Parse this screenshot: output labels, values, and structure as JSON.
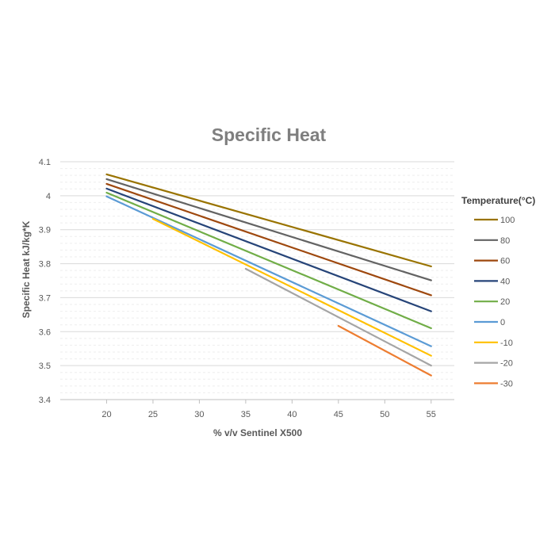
{
  "chart_data": {
    "type": "line",
    "title": "Specific Heat",
    "xlabel": "% v/v Sentinel X500",
    "ylabel": "Specific Heat kJ/kg*K",
    "x_ticks": [
      "20",
      "25",
      "30",
      "35",
      "40",
      "45",
      "50",
      "55"
    ],
    "y_ticks": [
      "3.4",
      "3.5",
      "3.6",
      "3.7",
      "3.8",
      "3.9",
      "4",
      "4.1"
    ],
    "xlim": [
      15,
      57.5
    ],
    "ylim": [
      3.4,
      4.1
    ],
    "grid": true,
    "legend_title": "Temperature(°C)",
    "legend_position": "right",
    "series": [
      {
        "name": "100",
        "color": "#997300",
        "x": [
          20,
          55
        ],
        "y": [
          4.063,
          3.792
        ]
      },
      {
        "name": "80",
        "color": "#636363",
        "x": [
          20,
          55
        ],
        "y": [
          4.049,
          3.751
        ]
      },
      {
        "name": "60",
        "color": "#9e480e",
        "x": [
          20,
          55
        ],
        "y": [
          4.035,
          3.707
        ]
      },
      {
        "name": "40",
        "color": "#264478",
        "x": [
          20,
          55
        ],
        "y": [
          4.021,
          3.66
        ]
      },
      {
        "name": "20",
        "color": "#70ad47",
        "x": [
          20,
          55
        ],
        "y": [
          4.009,
          3.61
        ]
      },
      {
        "name": "0",
        "color": "#5b9bd5",
        "x": [
          20,
          55
        ],
        "y": [
          3.998,
          3.557
        ]
      },
      {
        "name": "-10",
        "color": "#ffc000",
        "x": [
          25,
          55
        ],
        "y": [
          3.932,
          3.529
        ]
      },
      {
        "name": "-20",
        "color": "#a5a5a5",
        "x": [
          35,
          55
        ],
        "y": [
          3.785,
          3.5
        ]
      },
      {
        "name": "-30",
        "color": "#ed7d31",
        "x": [
          45,
          55
        ],
        "y": [
          3.617,
          3.471
        ]
      }
    ]
  }
}
